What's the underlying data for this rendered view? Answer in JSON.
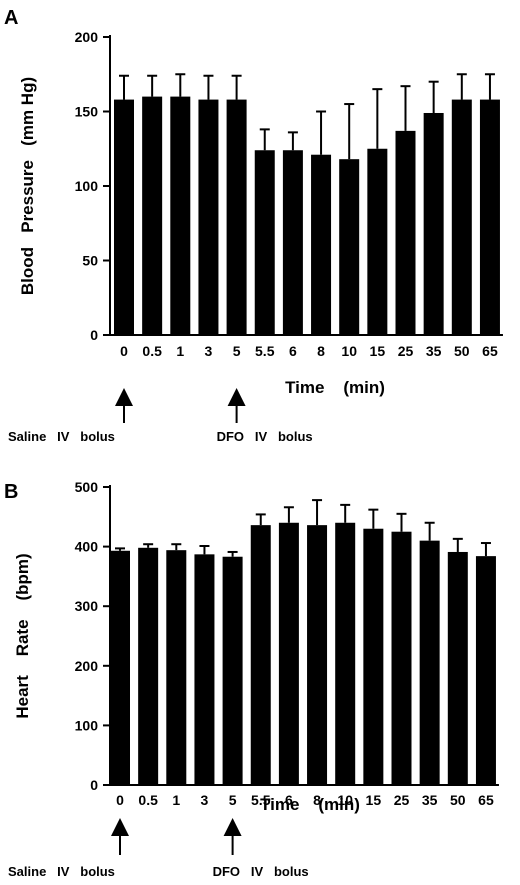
{
  "chart_data": [
    {
      "panel_label": "A",
      "type": "bar",
      "categories": [
        "0",
        "0.5",
        "1",
        "3",
        "5",
        "5.5",
        "6",
        "8",
        "10",
        "15",
        "25",
        "35",
        "50",
        "65"
      ],
      "values": [
        158,
        160,
        160,
        158,
        158,
        124,
        124,
        121,
        118,
        125,
        137,
        149,
        158,
        158
      ],
      "errors": [
        16,
        14,
        15,
        16,
        16,
        14,
        12,
        29,
        37,
        40,
        30,
        21,
        17,
        17
      ],
      "ylabel": "Blood   Pressure   (mm Hg)",
      "xlabel": "Time    (min)",
      "ylim": [
        0,
        200
      ],
      "yticks": [
        0,
        50,
        100,
        150,
        200
      ],
      "annotations": [
        {
          "text": "Saline   IV   bolus",
          "category": "0"
        },
        {
          "text": "DFO   IV   bolus",
          "category": "5"
        }
      ],
      "bar_color": "#000000"
    },
    {
      "panel_label": "B",
      "type": "bar",
      "categories": [
        "0",
        "0.5",
        "1",
        "3",
        "5",
        "5.5",
        "6",
        "8",
        "10",
        "15",
        "25",
        "35",
        "50",
        "65"
      ],
      "values": [
        393,
        398,
        394,
        387,
        383,
        436,
        440,
        436,
        440,
        430,
        425,
        410,
        391,
        384
      ],
      "errors": [
        4,
        6,
        10,
        14,
        8,
        18,
        26,
        42,
        30,
        32,
        30,
        30,
        22,
        22
      ],
      "ylabel": "Heart    Rate    (bpm)",
      "xlabel": "Time    (min)",
      "ylim": [
        0,
        500
      ],
      "yticks": [
        0,
        100,
        200,
        300,
        400,
        500
      ],
      "annotations": [
        {
          "text": "Saline   IV   bolus",
          "category": "0"
        },
        {
          "text": "DFO   IV   bolus",
          "category": "5"
        }
      ],
      "bar_color": "#000000"
    }
  ]
}
